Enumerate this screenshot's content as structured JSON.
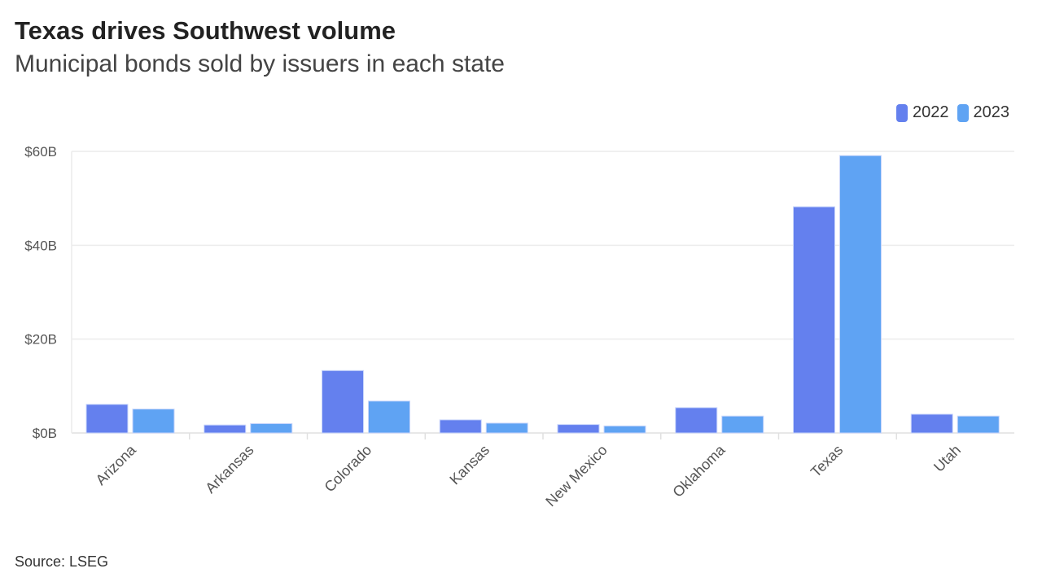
{
  "chart_data": {
    "type": "bar",
    "title": "Texas drives Southwest volume",
    "subtitle": "Municipal bonds sold by issuers in each state",
    "source": "Source: LSEG",
    "categories": [
      "Arizona",
      "Arkansas",
      "Colorado",
      "Kansas",
      "New Mexico",
      "Oklahoma",
      "Texas",
      "Utah"
    ],
    "series": [
      {
        "name": "2022",
        "color": "#6480EE",
        "values": [
          6.1,
          1.7,
          13.3,
          2.8,
          1.8,
          5.4,
          48.2,
          4.0
        ]
      },
      {
        "name": "2023",
        "color": "#5FA3F3",
        "values": [
          5.1,
          2.0,
          6.8,
          2.1,
          1.5,
          3.6,
          59.1,
          3.6
        ]
      }
    ],
    "ylim": [
      0,
      60
    ],
    "yticks": [
      0,
      20,
      40,
      60
    ],
    "ytick_labels": [
      "$0B",
      "$20B",
      "$40B",
      "$60B"
    ],
    "grid": true,
    "legend_position": "top-right"
  }
}
